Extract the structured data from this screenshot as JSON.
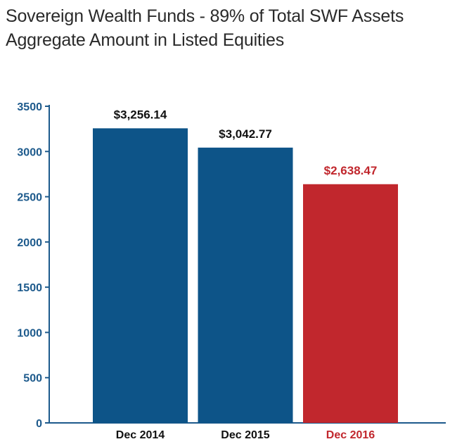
{
  "chart_data": {
    "type": "bar",
    "title": "Sovereign Wealth Funds - 89% of Total SWF Assets",
    "subtitle": "Aggregate Amount in Listed Equities",
    "xlabel": "",
    "ylabel": "",
    "ylim": [
      0,
      3500
    ],
    "yticks": [
      0,
      500,
      1000,
      1500,
      2000,
      2500,
      3000,
      3500
    ],
    "ytick_labels": [
      "0",
      "500",
      "1000",
      "1500",
      "2000",
      "2500",
      "3000",
      "3500"
    ],
    "grid": false,
    "categories": [
      "Dec 2014",
      "Dec 2015",
      "Dec 2016"
    ],
    "values": [
      3256.14,
      3042.77,
      2638.47
    ],
    "value_labels": [
      "$3,256.14",
      "$3,042.77",
      "$2,638.47"
    ],
    "bar_colors": [
      "#0d5488",
      "#0d5488",
      "#c1272d"
    ],
    "label_colors": [
      "#111111",
      "#111111",
      "#c1272d"
    ],
    "axis_color": "#1d5a8c"
  }
}
